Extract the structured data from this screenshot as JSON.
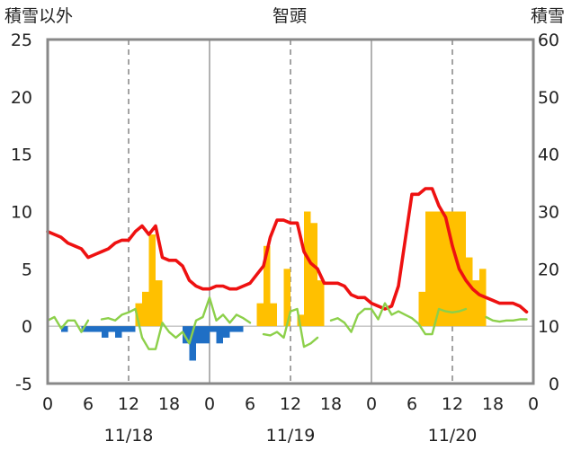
{
  "chart_data": {
    "type": "bar+line",
    "title": "智頭",
    "left_axis_title": "積雪以外",
    "right_axis_title": "積雪",
    "left_ylim": [
      -5,
      25
    ],
    "right_ylim": [
      0,
      60
    ],
    "left_ticks": [
      "25",
      "20",
      "15",
      "10",
      "5",
      "0",
      "-5"
    ],
    "right_ticks": [
      "60",
      "50",
      "40",
      "30",
      "20",
      "10",
      "0"
    ],
    "x_tick_labels": [
      "0",
      "6",
      "12",
      "18",
      "0",
      "6",
      "12",
      "18",
      "0",
      "6",
      "12",
      "18",
      "0"
    ],
    "date_labels": [
      "11/18",
      "11/19",
      "11/20"
    ],
    "hours_total": 72,
    "series": [
      {
        "kind": "bar",
        "axis": "left",
        "color": "#ffc000",
        "hours": [
          13.5,
          14.5,
          15.5,
          16.5,
          31.5,
          32.5,
          33.5,
          34.5,
          35.5,
          36.5,
          37.5,
          38.5,
          39.5,
          40.5,
          41.5,
          55.5,
          56.5,
          57.5,
          58.5,
          59.5,
          60.5,
          61.5,
          62.5,
          63.5,
          64.5,
          65.5
        ],
        "values": [
          2,
          3,
          8,
          4,
          2,
          7,
          2,
          0,
          5,
          0,
          1,
          10,
          9,
          4,
          0,
          3,
          10,
          10,
          10,
          10,
          10,
          10,
          6,
          4,
          5,
          0
        ]
      },
      {
        "kind": "bar",
        "axis": "left",
        "color": "#1f6fc5",
        "hours": [
          2.5,
          5.5,
          6.5,
          7.5,
          8.5,
          9.5,
          10.5,
          11.5,
          12.5,
          20.5,
          21.5,
          22.5,
          23.5,
          24.5,
          25.5,
          26.5,
          27.5,
          28.5
        ],
        "values": [
          -0.5,
          -0.5,
          -0.5,
          -0.5,
          -1,
          -0.5,
          -1,
          -0.5,
          -0.5,
          -1.5,
          -3,
          -1.5,
          -1.5,
          -0.5,
          -1.5,
          -1,
          -0.5,
          -0.5
        ]
      },
      {
        "kind": "line",
        "axis": "right",
        "color": "#ee1111",
        "hours": [
          0,
          1,
          2,
          3,
          4,
          5,
          6,
          7,
          8,
          9,
          10,
          11,
          12,
          13,
          14,
          15,
          16,
          17,
          18,
          19,
          20,
          21,
          22,
          23,
          24,
          25,
          26,
          27,
          28,
          29,
          30,
          31,
          32,
          33,
          34,
          35,
          36,
          37,
          38,
          39,
          40,
          41,
          42,
          43,
          44,
          45,
          46,
          47,
          48,
          49,
          50,
          51,
          52,
          53,
          54,
          55,
          56,
          57,
          58,
          59,
          60,
          61,
          62,
          63,
          64,
          65,
          66,
          67,
          68,
          69,
          70,
          71
        ],
        "values": [
          26.5,
          26,
          25.5,
          24.5,
          24,
          23.5,
          22,
          22.5,
          23,
          23.5,
          24.5,
          25,
          25,
          26.5,
          27.5,
          26,
          27.5,
          22,
          21.5,
          21.5,
          20.5,
          18,
          17,
          16.5,
          16.5,
          17,
          17,
          16.5,
          16.5,
          17,
          17.5,
          19,
          20.5,
          25.5,
          28.5,
          28.5,
          28,
          28,
          23,
          21,
          20,
          17.5,
          17.5,
          17.5,
          17,
          15.5,
          15,
          15,
          14,
          13.5,
          13,
          13.5,
          17,
          25,
          33,
          33,
          34,
          34,
          31,
          29,
          24,
          20,
          18,
          16.5,
          15.5,
          15,
          14.5,
          14,
          14,
          14,
          13.5,
          12.5
        ]
      },
      {
        "kind": "line",
        "axis": "left",
        "color": "#8cd04a",
        "hours": [
          0,
          1,
          2,
          3,
          4,
          5,
          6,
          7,
          8,
          9,
          10,
          11,
          12,
          13,
          14,
          15,
          16,
          17,
          18,
          19,
          20,
          21,
          22,
          23,
          24,
          25,
          26,
          27,
          28,
          29,
          30,
          31,
          32,
          33,
          34,
          35,
          36,
          37,
          38,
          39,
          40,
          41,
          42,
          43,
          44,
          45,
          46,
          47,
          48,
          49,
          50,
          51,
          52,
          53,
          54,
          55,
          56,
          57,
          58,
          59,
          60,
          61,
          62,
          63,
          64,
          65,
          66,
          67,
          68,
          69,
          70,
          71
        ],
        "values": [
          0.5,
          0.8,
          -0.2,
          0.5,
          0.5,
          -0.5,
          0.5,
          null,
          0.6,
          0.7,
          0.5,
          1,
          1.2,
          1.5,
          -1,
          -2,
          -2,
          0.3,
          -0.5,
          -1,
          -0.5,
          -1.5,
          0.5,
          0.8,
          2.5,
          0.5,
          1,
          0.3,
          1,
          0.7,
          0.3,
          null,
          -0.7,
          -0.8,
          -0.5,
          -1,
          1.3,
          1.5,
          -1.8,
          -1.5,
          -1,
          null,
          0.5,
          0.7,
          0.3,
          -0.5,
          1,
          1.5,
          1.5,
          0.6,
          2,
          1,
          1.3,
          1,
          0.7,
          0.2,
          -0.7,
          -0.7,
          1.5,
          1.3,
          1.2,
          1.3,
          1.5,
          null,
          null,
          0.8,
          0.5,
          0.4,
          0.5,
          0.5,
          0.6,
          0.6
        ]
      },
      {
        "kind": "line",
        "axis": "left",
        "color": "#7030a0",
        "hours": [
          0,
          72
        ],
        "values": [
          -5,
          -5
        ]
      }
    ]
  }
}
